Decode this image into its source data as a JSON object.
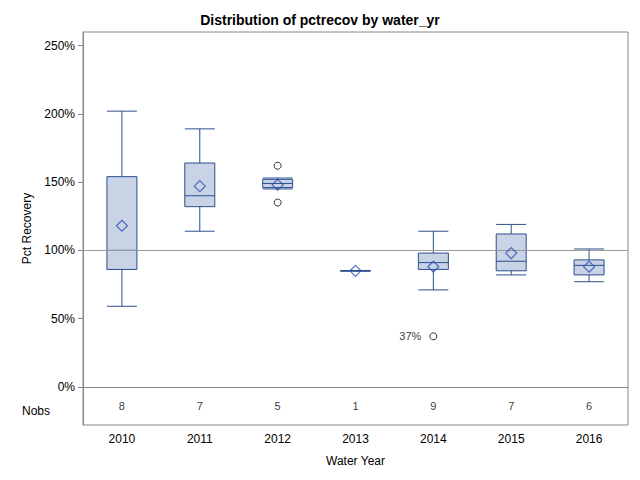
{
  "chart_data": {
    "type": "boxplot",
    "title": "Distribution of pctrecov by water_yr",
    "x_label": "Water Year",
    "y_label": "Pct Recovery",
    "categories": [
      "2010",
      "2011",
      "2012",
      "2013",
      "2014",
      "2015",
      "2016"
    ],
    "boxes": [
      [
        59,
        86,
        100,
        154,
        202
      ],
      [
        114,
        132,
        140,
        164,
        189
      ],
      [
        145,
        146,
        149,
        152,
        153
      ],
      [
        85,
        85,
        85,
        85,
        85
      ],
      [
        71,
        86,
        91,
        98,
        114
      ],
      [
        82,
        85,
        92,
        112,
        119
      ],
      [
        77,
        82,
        89,
        93,
        101
      ]
    ],
    "means": [
      118,
      147,
      148,
      85,
      88,
      98,
      88
    ],
    "outliers": [
      [],
      [],
      [
        162,
        135
      ],
      [],
      [
        {
          "value": 37,
          "label": "37%"
        }
      ],
      [],
      []
    ],
    "nobs_label": "Nobs",
    "nobs": [
      8,
      7,
      5,
      1,
      9,
      7,
      6
    ],
    "reference_line": 100,
    "ylim": [
      -28,
      260
    ],
    "yticks": [
      {
        "value": 0,
        "label": "0%"
      },
      {
        "value": 50,
        "label": "50%"
      },
      {
        "value": 100,
        "label": "100%"
      },
      {
        "value": 150,
        "label": "150%"
      },
      {
        "value": 200,
        "label": "200%"
      },
      {
        "value": 250,
        "label": "250%"
      }
    ],
    "grid": false,
    "color": "#c8d3e6"
  }
}
